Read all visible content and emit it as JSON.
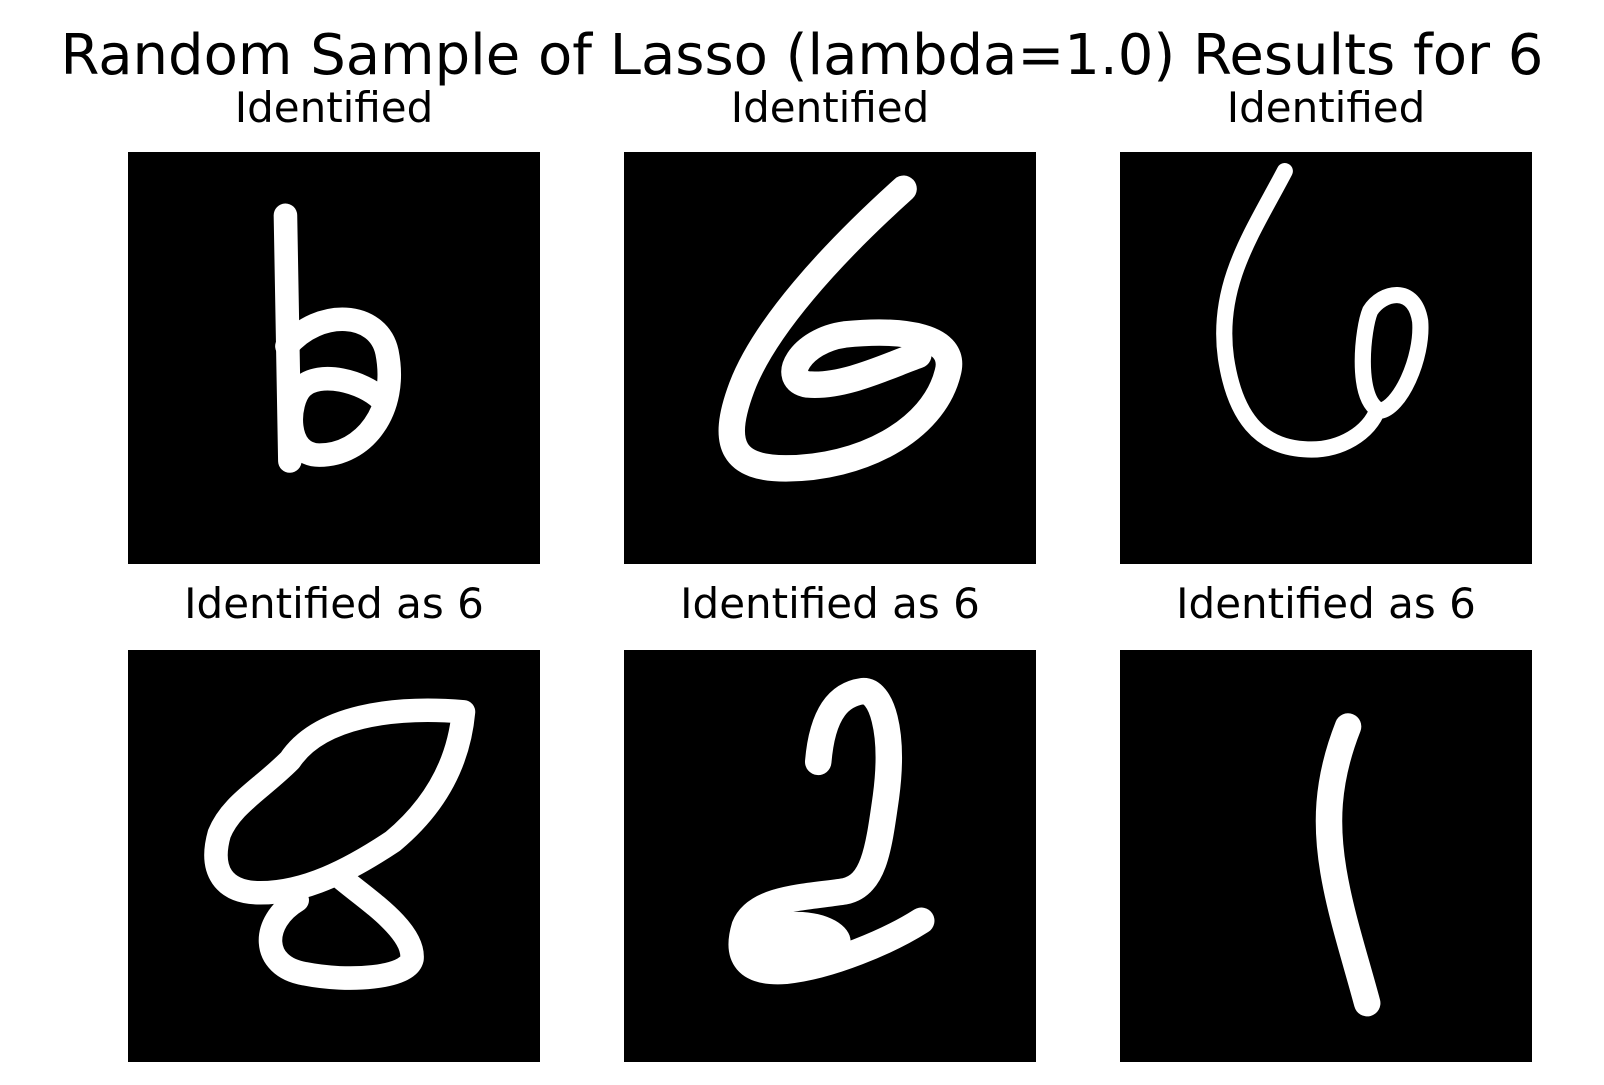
{
  "title": "Random Sample of Lasso (lambda=1.0) Results for 6",
  "panels": [
    {
      "caption": "Identified",
      "digit": "6"
    },
    {
      "caption": "Identified",
      "digit": "6"
    },
    {
      "caption": "Identified",
      "digit": "6"
    },
    {
      "caption": "Identified as 6",
      "digit": "8"
    },
    {
      "caption": "Identified as 6",
      "digit": "2"
    },
    {
      "caption": "Identified as 6",
      "digit": "1"
    }
  ],
  "colors": {
    "panel_background": "#000000",
    "stroke": "#ffffff"
  }
}
